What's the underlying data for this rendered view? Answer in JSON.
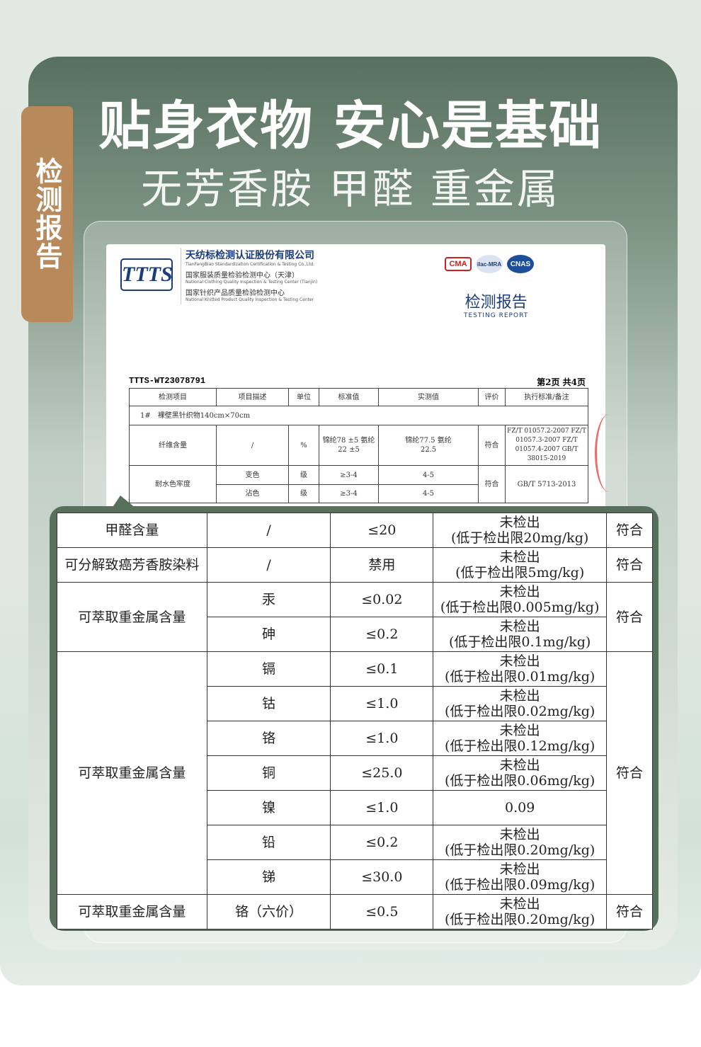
{
  "header": {
    "side_tab": "检测报告",
    "title": "贴身衣物 安心是基础",
    "subtitle": "无芳香胺 甲醛 重金属"
  },
  "report": {
    "logo": "TTTS",
    "org_name": "天纺标检测认证股份有限公司",
    "org_name_en": "TianFangBiao Standardization Certification & Testing Co.,Ltd.",
    "center1": "国家服装质量检验检测中心（天津）",
    "center1_en": "National Clothing Quality Inspection & Testing Center (Tianjin)",
    "center2": "国家针织产品质量检验检测中心",
    "center2_en": "National Knitted Product Quality Inspection & Testing Center",
    "certs": [
      "CMA",
      "ilac-MRA",
      "CNAS"
    ],
    "title": "检测报告",
    "title_en": "TESTING REPORT",
    "report_no": "TTTS-WT23078791",
    "page": "第2页 共4页",
    "headers": [
      "检测项目",
      "项目描述",
      "单位",
      "标准值",
      "实测值",
      "评价",
      "执行标准/备注"
    ],
    "sample": "1#　裸壁黑针织物140cm×70cm",
    "fiber": {
      "item": "纤维含量",
      "desc": "/",
      "unit": "%",
      "standard": "锦纶78 ±5 氨纶22 ±5",
      "measured": "锦纶77.5 氨纶22.5",
      "result": "符合",
      "ref": "FZ/T 01057.2-2007 FZ/T 01057.3-2007 FZ/T 01057.4-2007 GB/T 38015-2019"
    },
    "water": {
      "item": "耐水色牢度",
      "rows": [
        {
          "desc": "变色",
          "unit": "级",
          "standard": "≥3-4",
          "measured": "4-5"
        },
        {
          "desc": "沾色",
          "unit": "级",
          "standard": "≥3-4",
          "measured": "4-5"
        }
      ],
      "result": "符合",
      "ref": "GB/T 5713-2013"
    }
  },
  "table": {
    "groups": [
      {
        "item": "甲醛含量",
        "result": "符合",
        "rows": [
          {
            "desc": "/",
            "standard": "≤20",
            "measured": "未检出\n(低于检出限20mg/kg)"
          }
        ]
      },
      {
        "item": "可分解致癌芳香胺染料",
        "result": "符合",
        "rows": [
          {
            "desc": "/",
            "standard": "禁用",
            "measured": "未检出\n(低于检出限5mg/kg)"
          }
        ]
      },
      {
        "item": "可萃取重金属含量",
        "result": "符合",
        "rows": [
          {
            "desc": "汞",
            "standard": "≤0.02",
            "measured": "未检出\n(低于检出限0.005mg/kg)"
          },
          {
            "desc": "砷",
            "standard": "≤0.2",
            "measured": "未检出\n(低于检出限0.1mg/kg)"
          }
        ]
      },
      {
        "item": "可萃取重金属含量",
        "result": "符合",
        "rows": [
          {
            "desc": "镉",
            "standard": "≤0.1",
            "measured": "未检出\n(低于检出限0.01mg/kg)"
          },
          {
            "desc": "钴",
            "standard": "≤1.0",
            "measured": "未检出\n(低于检出限0.02mg/kg)"
          },
          {
            "desc": "铬",
            "standard": "≤1.0",
            "measured": "未检出\n(低于检出限0.12mg/kg)"
          },
          {
            "desc": "铜",
            "standard": "≤25.0",
            "measured": "未检出\n(低于检出限0.06mg/kg)"
          },
          {
            "desc": "镍",
            "standard": "≤1.0",
            "measured": "0.09"
          },
          {
            "desc": "铅",
            "standard": "≤0.2",
            "measured": "未检出\n(低于检出限0.20mg/kg)"
          },
          {
            "desc": "锑",
            "standard": "≤30.0",
            "measured": "未检出\n(低于检出限0.09mg/kg)"
          }
        ]
      },
      {
        "item": "可萃取重金属含量",
        "result": "符合",
        "rows": [
          {
            "desc": "铬（六价）",
            "standard": "≤0.5",
            "measured": "未检出\n(低于检出限0.20mg/kg)"
          }
        ]
      }
    ]
  },
  "colors": {
    "card_top": "#587060",
    "tab": "#b7895b",
    "table_frame": "#56705c",
    "report_blue": "#1c3c7a"
  }
}
